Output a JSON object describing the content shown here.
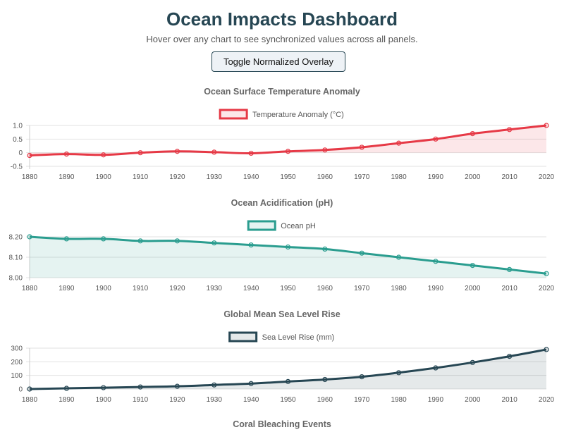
{
  "header": {
    "title": "Ocean Impacts Dashboard",
    "subtitle": "Hover over any chart to see synchronized values across all panels.",
    "toggle_label": "Toggle Normalized Overlay"
  },
  "chart_data": [
    {
      "type": "line",
      "title": "Ocean Surface Temperature Anomaly",
      "legend": "Temperature Anomaly (°C)",
      "color": "#e63946",
      "fill": "rgba(230,57,70,0.12)",
      "x": [
        1880,
        1890,
        1900,
        1910,
        1920,
        1930,
        1940,
        1950,
        1960,
        1970,
        1980,
        1990,
        2000,
        2010,
        2020
      ],
      "values": [
        -0.1,
        -0.05,
        -0.08,
        0,
        0.05,
        0.02,
        -0.02,
        0.05,
        0.1,
        0.2,
        0.35,
        0.5,
        0.7,
        0.85,
        1.0
      ],
      "ylim": [
        -0.5,
        1.0
      ],
      "yticks": [
        "1.0",
        "0.5",
        "0",
        "-0.5"
      ],
      "ytick_values": [
        1.0,
        0.5,
        0,
        -0.5
      ],
      "fill_base": 0
    },
    {
      "type": "line",
      "title": "Ocean Acidification (pH)",
      "legend": "Ocean pH",
      "color": "#2a9d8f",
      "fill": "rgba(42,157,143,0.12)",
      "x": [
        1880,
        1890,
        1900,
        1910,
        1920,
        1930,
        1940,
        1950,
        1960,
        1970,
        1980,
        1990,
        2000,
        2010,
        2020
      ],
      "values": [
        8.2,
        8.19,
        8.19,
        8.18,
        8.18,
        8.17,
        8.16,
        8.15,
        8.14,
        8.12,
        8.1,
        8.08,
        8.06,
        8.04,
        8.02
      ],
      "ylim": [
        8.0,
        8.2
      ],
      "yticks": [
        "8.20",
        "8.10",
        "8.00"
      ],
      "ytick_values": [
        8.2,
        8.1,
        8.0
      ],
      "fill_base": 8.0
    },
    {
      "type": "line",
      "title": "Global Mean Sea Level Rise",
      "legend": "Sea Level Rise (mm)",
      "color": "#264653",
      "fill": "rgba(38,70,83,0.12)",
      "x": [
        1880,
        1890,
        1900,
        1910,
        1920,
        1930,
        1940,
        1950,
        1960,
        1970,
        1980,
        1990,
        2000,
        2010,
        2020
      ],
      "values": [
        0,
        5,
        10,
        15,
        20,
        30,
        40,
        55,
        70,
        90,
        120,
        155,
        195,
        240,
        290
      ],
      "ylim": [
        0,
        300
      ],
      "yticks": [
        "300",
        "200",
        "100",
        "0"
      ],
      "ytick_values": [
        300,
        200,
        100,
        0
      ],
      "fill_base": 0
    },
    {
      "type": "line",
      "title": "Coral Bleaching Events"
    }
  ]
}
